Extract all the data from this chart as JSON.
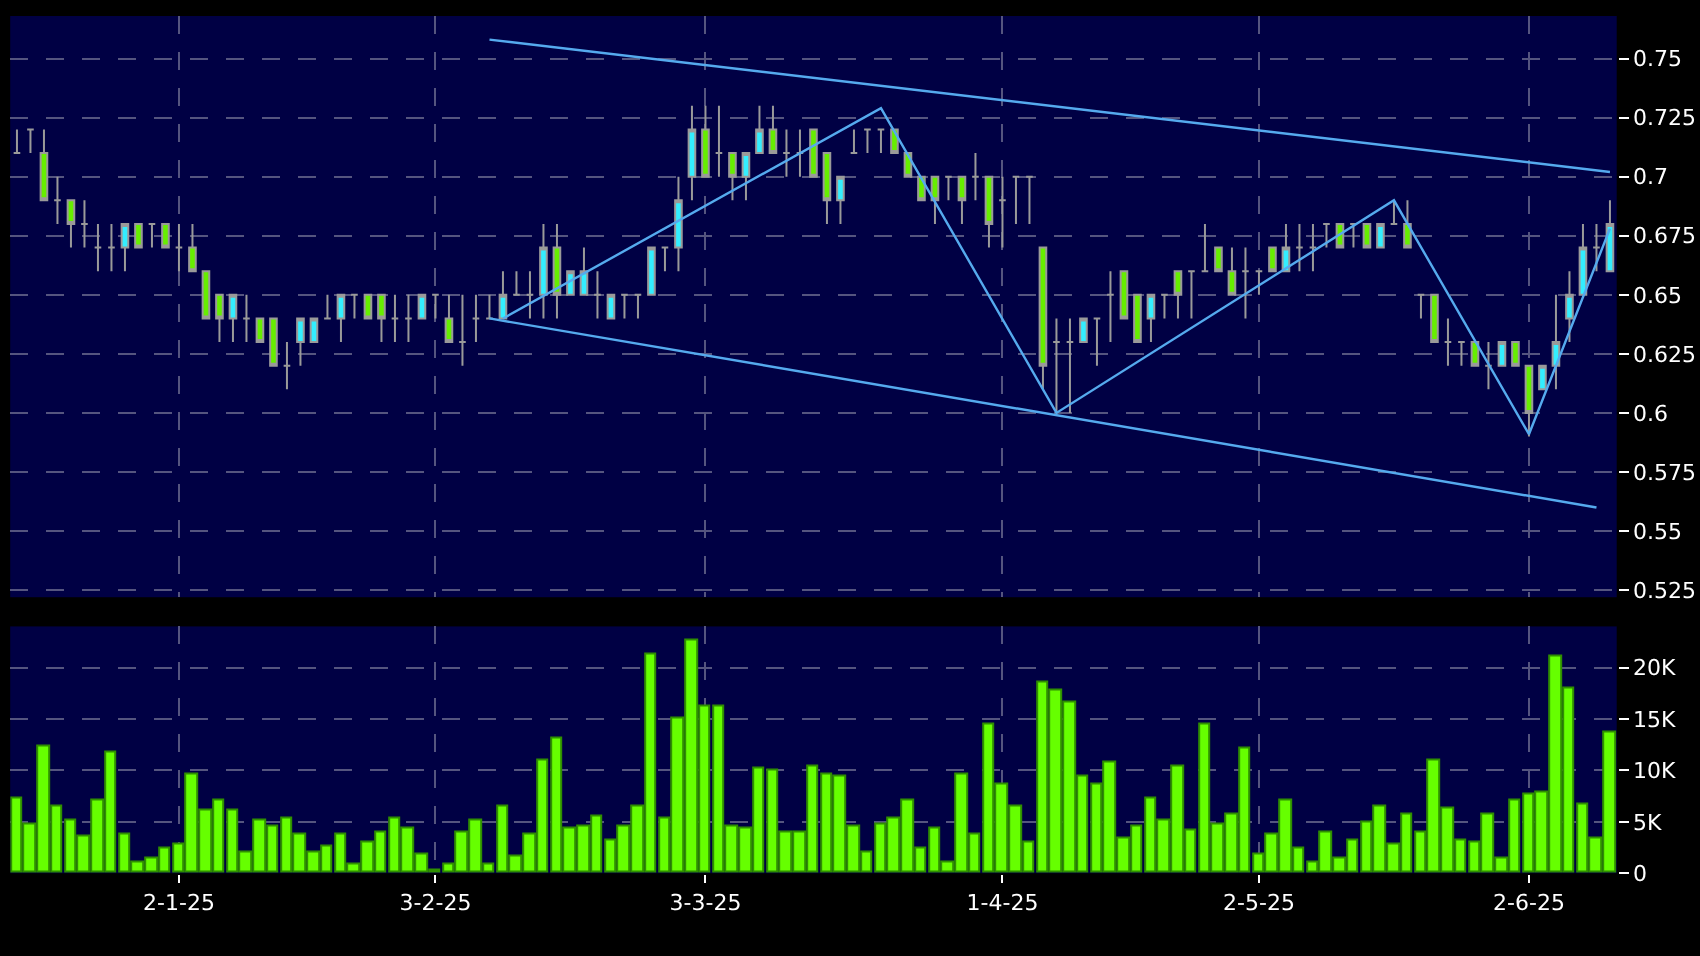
{
  "chart_data": [
    {
      "type": "candlestick",
      "tick_labels": "y",
      "grid": true,
      "categories": [
        null,
        null,
        null,
        null,
        null,
        null,
        null,
        null,
        null,
        null,
        null,
        null,
        null,
        null,
        null,
        null,
        null,
        null,
        null,
        null,
        null,
        null,
        null,
        null,
        null,
        null,
        null,
        null,
        null,
        null,
        null,
        null,
        null,
        null,
        null,
        null,
        null,
        null,
        null,
        null,
        null,
        null,
        null,
        null,
        null,
        null,
        null,
        null,
        null,
        null,
        null,
        null,
        null,
        null,
        null,
        null,
        null,
        null,
        null,
        null,
        null,
        null,
        null,
        null,
        null,
        null,
        null,
        null,
        null,
        null,
        null,
        null,
        null,
        null,
        null,
        null,
        null,
        null,
        null,
        null,
        null,
        null,
        null,
        null,
        null,
        null,
        null,
        null,
        null,
        null,
        null,
        null,
        null,
        null,
        null,
        null,
        null,
        null,
        null,
        null,
        null,
        null,
        null,
        null,
        null,
        null,
        null,
        null,
        null,
        null,
        null,
        null,
        null,
        null,
        null,
        null,
        null,
        null,
        null
      ],
      "ylim": [
        0.522,
        0.768
      ],
      "yticks": [
        0.525,
        0.55,
        0.575,
        0.6,
        0.625,
        0.65,
        0.675,
        0.7,
        0.725,
        0.75
      ],
      "ohlc": [
        [
          0.71,
          0.72,
          0.71,
          0.71
        ],
        [
          0.72,
          0.72,
          0.71,
          0.72
        ],
        [
          0.71,
          0.72,
          0.69,
          0.69
        ],
        [
          0.69,
          0.7,
          0.68,
          0.69
        ],
        [
          0.69,
          0.69,
          0.67,
          0.68
        ],
        [
          0.68,
          0.69,
          0.67,
          0.68
        ],
        [
          0.67,
          0.68,
          0.66,
          0.67
        ],
        [
          0.67,
          0.68,
          0.66,
          0.67
        ],
        [
          0.67,
          0.68,
          0.66,
          0.68
        ],
        [
          0.68,
          0.68,
          0.67,
          0.67
        ],
        [
          0.68,
          0.68,
          0.67,
          0.68
        ],
        [
          0.68,
          0.68,
          0.67,
          0.67
        ],
        [
          0.67,
          0.68,
          0.66,
          0.67
        ],
        [
          0.67,
          0.68,
          0.66,
          0.66
        ],
        [
          0.66,
          0.66,
          0.64,
          0.64
        ],
        [
          0.65,
          0.65,
          0.63,
          0.64
        ],
        [
          0.64,
          0.65,
          0.63,
          0.65
        ],
        [
          0.64,
          0.65,
          0.63,
          0.64
        ],
        [
          0.64,
          0.64,
          0.63,
          0.63
        ],
        [
          0.64,
          0.64,
          0.62,
          0.62
        ],
        [
          0.62,
          0.63,
          0.61,
          0.62
        ],
        [
          0.63,
          0.64,
          0.62,
          0.64
        ],
        [
          0.63,
          0.64,
          0.63,
          0.64
        ],
        [
          0.64,
          0.65,
          0.64,
          0.64
        ],
        [
          0.64,
          0.65,
          0.63,
          0.65
        ],
        [
          0.65,
          0.65,
          0.64,
          0.65
        ],
        [
          0.65,
          0.65,
          0.64,
          0.64
        ],
        [
          0.65,
          0.65,
          0.63,
          0.64
        ],
        [
          0.64,
          0.65,
          0.63,
          0.64
        ],
        [
          0.64,
          0.65,
          0.63,
          0.64
        ],
        [
          0.64,
          0.65,
          0.64,
          0.65
        ],
        [
          0.65,
          0.65,
          0.64,
          0.65
        ],
        [
          0.64,
          0.65,
          0.63,
          0.63
        ],
        [
          0.63,
          0.65,
          0.62,
          0.63
        ],
        [
          0.64,
          0.65,
          0.63,
          0.64
        ],
        [
          0.64,
          0.65,
          0.64,
          0.64
        ],
        [
          0.64,
          0.66,
          0.64,
          0.65
        ],
        [
          0.65,
          0.66,
          0.65,
          0.65
        ],
        [
          0.65,
          0.66,
          0.64,
          0.65
        ],
        [
          0.65,
          0.68,
          0.64,
          0.67
        ],
        [
          0.67,
          0.68,
          0.64,
          0.65
        ],
        [
          0.65,
          0.66,
          0.65,
          0.66
        ],
        [
          0.65,
          0.67,
          0.65,
          0.66
        ],
        [
          0.65,
          0.66,
          0.64,
          0.65
        ],
        [
          0.64,
          0.65,
          0.64,
          0.65
        ],
        [
          0.65,
          0.65,
          0.64,
          0.65
        ],
        [
          0.65,
          0.65,
          0.64,
          0.65
        ],
        [
          0.65,
          0.67,
          0.65,
          0.67
        ],
        [
          0.67,
          0.67,
          0.66,
          0.67
        ],
        [
          0.67,
          0.7,
          0.66,
          0.69
        ],
        [
          0.7,
          0.73,
          0.69,
          0.72
        ],
        [
          0.72,
          0.73,
          0.7,
          0.7
        ],
        [
          0.71,
          0.73,
          0.7,
          0.71
        ],
        [
          0.71,
          0.71,
          0.69,
          0.7
        ],
        [
          0.7,
          0.71,
          0.69,
          0.71
        ],
        [
          0.71,
          0.73,
          0.71,
          0.72
        ],
        [
          0.72,
          0.73,
          0.71,
          0.71
        ],
        [
          0.71,
          0.72,
          0.7,
          0.71
        ],
        [
          0.71,
          0.72,
          0.7,
          0.71
        ],
        [
          0.72,
          0.72,
          0.7,
          0.7
        ],
        [
          0.71,
          0.71,
          0.68,
          0.69
        ],
        [
          0.69,
          0.7,
          0.68,
          0.7
        ],
        [
          0.71,
          0.72,
          0.71,
          0.71
        ],
        [
          0.72,
          0.72,
          0.71,
          0.72
        ],
        [
          0.72,
          0.72,
          0.71,
          0.72
        ],
        [
          0.72,
          0.72,
          0.71,
          0.71
        ],
        [
          0.71,
          0.71,
          0.7,
          0.7
        ],
        [
          0.7,
          0.7,
          0.69,
          0.69
        ],
        [
          0.7,
          0.7,
          0.68,
          0.69
        ],
        [
          0.7,
          0.7,
          0.69,
          0.7
        ],
        [
          0.7,
          0.7,
          0.68,
          0.69
        ],
        [
          0.7,
          0.71,
          0.69,
          0.7
        ],
        [
          0.7,
          0.7,
          0.67,
          0.68
        ],
        [
          0.69,
          0.7,
          0.67,
          0.69
        ],
        [
          0.7,
          0.7,
          0.68,
          0.7
        ],
        [
          0.7,
          0.7,
          0.68,
          0.7
        ],
        [
          0.67,
          0.67,
          0.61,
          0.62
        ],
        [
          0.63,
          0.64,
          0.6,
          0.63
        ],
        [
          0.63,
          0.64,
          0.6,
          0.63
        ],
        [
          0.63,
          0.64,
          0.63,
          0.64
        ],
        [
          0.64,
          0.64,
          0.62,
          0.64
        ],
        [
          0.65,
          0.66,
          0.63,
          0.65
        ],
        [
          0.66,
          0.66,
          0.64,
          0.64
        ],
        [
          0.65,
          0.65,
          0.63,
          0.63
        ],
        [
          0.64,
          0.65,
          0.63,
          0.65
        ],
        [
          0.65,
          0.65,
          0.64,
          0.65
        ],
        [
          0.66,
          0.66,
          0.64,
          0.65
        ],
        [
          0.66,
          0.66,
          0.64,
          0.66
        ],
        [
          0.66,
          0.68,
          0.66,
          0.66
        ],
        [
          0.67,
          0.67,
          0.66,
          0.66
        ],
        [
          0.66,
          0.67,
          0.65,
          0.65
        ],
        [
          0.66,
          0.67,
          0.64,
          0.66
        ],
        [
          0.66,
          0.66,
          0.65,
          0.66
        ],
        [
          0.67,
          0.67,
          0.66,
          0.66
        ],
        [
          0.66,
          0.68,
          0.66,
          0.67
        ],
        [
          0.67,
          0.68,
          0.66,
          0.67
        ],
        [
          0.67,
          0.68,
          0.66,
          0.67
        ],
        [
          0.68,
          0.68,
          0.67,
          0.68
        ],
        [
          0.68,
          0.68,
          0.67,
          0.67
        ],
        [
          0.68,
          0.68,
          0.67,
          0.68
        ],
        [
          0.68,
          0.68,
          0.67,
          0.67
        ],
        [
          0.67,
          0.68,
          0.67,
          0.68
        ],
        [
          0.68,
          0.69,
          0.68,
          0.68
        ],
        [
          0.68,
          0.69,
          0.67,
          0.67
        ],
        [
          0.65,
          0.65,
          0.64,
          0.65
        ],
        [
          0.65,
          0.65,
          0.63,
          0.63
        ],
        [
          0.63,
          0.64,
          0.62,
          0.63
        ],
        [
          0.63,
          0.63,
          0.62,
          0.63
        ],
        [
          0.63,
          0.63,
          0.62,
          0.62
        ],
        [
          0.62,
          0.63,
          0.61,
          0.62
        ],
        [
          0.62,
          0.63,
          0.62,
          0.63
        ],
        [
          0.63,
          0.63,
          0.62,
          0.62
        ],
        [
          0.62,
          0.62,
          0.59,
          0.6
        ],
        [
          0.61,
          0.62,
          0.61,
          0.62
        ],
        [
          0.62,
          0.65,
          0.61,
          0.63
        ],
        [
          0.64,
          0.66,
          0.63,
          0.65
        ],
        [
          0.65,
          0.68,
          0.65,
          0.67
        ],
        [
          0.67,
          0.68,
          0.66,
          0.67
        ],
        [
          0.66,
          0.69,
          0.66,
          0.68
        ]
      ],
      "colors": [
        "#a0a0a0",
        "#a0a0a0",
        "#66ee00",
        "#a0a0a0",
        "#66ee00",
        "#a0a0a0",
        "#a0a0a0",
        "#a0a0a0",
        "#33eeff",
        "#66ee00",
        "#a0a0a0",
        "#66ee00",
        "#a0a0a0",
        "#66ee00",
        "#66ee00",
        "#66ee00",
        "#33eeff",
        "#a0a0a0",
        "#66ee00",
        "#66ee00",
        "#a0a0a0",
        "#33eeff",
        "#33eeff",
        "#a0a0a0",
        "#33eeff",
        "#a0a0a0",
        "#66ee00",
        "#66ee00",
        "#a0a0a0",
        "#a0a0a0",
        "#33eeff",
        "#a0a0a0",
        "#66ee00",
        "#a0a0a0",
        "#a0a0a0",
        "#a0a0a0",
        "#33eeff",
        "#a0a0a0",
        "#a0a0a0",
        "#33eeff",
        "#66ee00",
        "#33eeff",
        "#33eeff",
        "#a0a0a0",
        "#33eeff",
        "#a0a0a0",
        "#a0a0a0",
        "#33eeff",
        "#a0a0a0",
        "#33eeff",
        "#33eeff",
        "#66ee00",
        "#a0a0a0",
        "#66ee00",
        "#33eeff",
        "#33eeff",
        "#66ee00",
        "#a0a0a0",
        "#a0a0a0",
        "#66ee00",
        "#66ee00",
        "#33eeff",
        "#a0a0a0",
        "#a0a0a0",
        "#a0a0a0",
        "#66ee00",
        "#66ee00",
        "#66ee00",
        "#66ee00",
        "#a0a0a0",
        "#66ee00",
        "#a0a0a0",
        "#66ee00",
        "#a0a0a0",
        "#a0a0a0",
        "#a0a0a0",
        "#66ee00",
        "#a0a0a0",
        "#a0a0a0",
        "#33eeff",
        "#a0a0a0",
        "#a0a0a0",
        "#66ee00",
        "#66ee00",
        "#33eeff",
        "#a0a0a0",
        "#66ee00",
        "#a0a0a0",
        "#a0a0a0",
        "#66ee00",
        "#66ee00",
        "#a0a0a0",
        "#a0a0a0",
        "#66ee00",
        "#33eeff",
        "#a0a0a0",
        "#a0a0a0",
        "#a0a0a0",
        "#66ee00",
        "#a0a0a0",
        "#66ee00",
        "#33eeff",
        "#a0a0a0",
        "#66ee00",
        "#a0a0a0",
        "#66ee00",
        "#a0a0a0",
        "#a0a0a0",
        "#66ee00",
        "#a0a0a0",
        "#33eeff",
        "#66ee00",
        "#66ee00",
        "#33eeff",
        "#33eeff",
        "#33eeff",
        "#33eeff",
        "#a0a0a0",
        "#33eeff"
      ],
      "series": [
        {
          "type": "line",
          "color": "#55aaee",
          "values": [
            null,
            null,
            null,
            null,
            null,
            null,
            null,
            null,
            null,
            null,
            null,
            null,
            null,
            null,
            null,
            null,
            null,
            null,
            null,
            null,
            null,
            null,
            null,
            null,
            null,
            null,
            null,
            null,
            null,
            null,
            null,
            null,
            null,
            null,
            null,
            0.758,
            null,
            null,
            null,
            null,
            null,
            null,
            null,
            null,
            null,
            null,
            null,
            null,
            null,
            null,
            null,
            null,
            null,
            null,
            null,
            null,
            null,
            null,
            null,
            null,
            null,
            null,
            null,
            null,
            null,
            null,
            null,
            null,
            null,
            null,
            null,
            null,
            null,
            null,
            null,
            null,
            null,
            null,
            null,
            null,
            null,
            null,
            null,
            null,
            null,
            null,
            null,
            null,
            null,
            null,
            null,
            null,
            null,
            null,
            null,
            null,
            null,
            null,
            null,
            null,
            null,
            null,
            null,
            null,
            null,
            null,
            null,
            null,
            null,
            null,
            null,
            null,
            null,
            null,
            null,
            null,
            null,
            null,
            0.702
          ]
        },
        {
          "type": "line",
          "color": "#55aaee",
          "values": [
            null,
            null,
            null,
            null,
            null,
            null,
            null,
            null,
            null,
            null,
            null,
            null,
            null,
            null,
            null,
            null,
            null,
            null,
            null,
            null,
            null,
            null,
            null,
            null,
            null,
            null,
            null,
            null,
            null,
            null,
            null,
            null,
            null,
            null,
            null,
            0.64,
            null,
            null,
            null,
            null,
            null,
            null,
            null,
            null,
            null,
            null,
            null,
            null,
            null,
            null,
            null,
            null,
            null,
            null,
            null,
            null,
            null,
            null,
            null,
            null,
            null,
            null,
            null,
            null,
            null,
            null,
            null,
            null,
            null,
            null,
            null,
            null,
            null,
            null,
            null,
            null,
            null,
            null,
            null,
            null,
            null,
            null,
            null,
            null,
            null,
            null,
            null,
            null,
            null,
            null,
            null,
            null,
            null,
            null,
            null,
            null,
            null,
            null,
            null,
            null,
            null,
            null,
            null,
            null,
            null,
            null,
            null,
            null,
            null,
            null,
            null,
            null,
            null,
            null,
            null,
            null,
            null,
            0.56,
            null
          ]
        },
        {
          "type": "line",
          "color": "#55aaee",
          "values": [
            null,
            null,
            null,
            null,
            null,
            null,
            null,
            null,
            null,
            null,
            null,
            null,
            null,
            null,
            null,
            null,
            null,
            null,
            null,
            null,
            null,
            null,
            null,
            null,
            null,
            null,
            null,
            null,
            null,
            null,
            null,
            null,
            null,
            null,
            null,
            null,
            0.64,
            null,
            null,
            null,
            null,
            null,
            null,
            null,
            null,
            null,
            null,
            null,
            null,
            null,
            null,
            null,
            null,
            null,
            null,
            null,
            null,
            null,
            null,
            null,
            null,
            null,
            null,
            null,
            0.729,
            null,
            null,
            null,
            null,
            null,
            null,
            null,
            null,
            null,
            null,
            null,
            null,
            0.6,
            null,
            null,
            null,
            null,
            null,
            null,
            null,
            null,
            null,
            null,
            null,
            null,
            null,
            null,
            null,
            null,
            null,
            null,
            null,
            null,
            null,
            null,
            null,
            null,
            0.69,
            null,
            null,
            null,
            null,
            null,
            null,
            null,
            null,
            null,
            0.591,
            null,
            null,
            null,
            null,
            null,
            0.678
          ]
        }
      ]
    },
    {
      "type": "bar",
      "grid": true,
      "color": "#66ff00",
      "categories": [
        null,
        null,
        null,
        null,
        null,
        null,
        null,
        null,
        null,
        null,
        null,
        null,
        "2-1-25",
        null,
        null,
        null,
        null,
        null,
        null,
        null,
        null,
        null,
        null,
        null,
        null,
        null,
        null,
        null,
        null,
        null,
        null,
        "3-2-25",
        null,
        null,
        null,
        null,
        null,
        null,
        null,
        null,
        null,
        null,
        null,
        null,
        null,
        null,
        null,
        null,
        null,
        null,
        null,
        "3-3-25",
        null,
        null,
        null,
        null,
        null,
        null,
        null,
        null,
        null,
        null,
        null,
        null,
        null,
        null,
        null,
        null,
        null,
        null,
        null,
        null,
        null,
        "1-4-25",
        null,
        null,
        null,
        null,
        null,
        null,
        null,
        null,
        null,
        null,
        null,
        null,
        null,
        null,
        null,
        null,
        null,
        null,
        "2-5-25",
        null,
        null,
        null,
        null,
        null,
        null,
        null,
        null,
        null,
        null,
        null,
        null,
        null,
        null,
        null,
        null,
        null,
        null,
        null,
        "2-6-25",
        null,
        null,
        null,
        null,
        null,
        null
      ],
      "ylim": [
        0,
        24000
      ],
      "yticks": [
        0,
        {
          "value": 5000,
          "label": "5K"
        },
        {
          "value": 10000,
          "label": "10K"
        },
        {
          "value": 15000,
          "label": "15K"
        },
        {
          "value": 20000,
          "label": "20K"
        }
      ],
      "values": [
        7200,
        4700,
        12400,
        6500,
        5100,
        3600,
        7000,
        11800,
        3700,
        1000,
        1400,
        2400,
        2800,
        9700,
        6200,
        7000,
        6200,
        2100,
        5100,
        4600,
        5300,
        3700,
        2000,
        2700,
        3800,
        900,
        2900,
        4000,
        5400,
        4400,
        1900,
        200,
        900,
        3900,
        5100,
        800,
        6400,
        1700,
        3700,
        11000,
        13100,
        4400,
        4500,
        5600,
        3100,
        4500,
        6400,
        21300,
        5400,
        15100,
        22700,
        16200,
        16300,
        4600,
        4300,
        10200,
        10000,
        3900,
        4000,
        10300,
        9600,
        9400,
        4500,
        2000,
        4700,
        5300,
        7100,
        2400,
        4300,
        1000,
        9700,
        3700,
        14500,
        8700,
        6400,
        2900,
        18500,
        17800,
        16700,
        9500,
        8700,
        10800,
        3300,
        4500,
        7300,
        5200,
        10300,
        4100,
        14400,
        4700,
        5700,
        12200,
        1800,
        3800,
        7000,
        2400,
        1100,
        3900,
        1500,
        3100,
        4900,
        6500,
        2800,
        5700,
        4000,
        10900,
        6300,
        3100,
        2900,
        5800,
        1500,
        7100,
        7700,
        7800,
        21100,
        17900,
        6700,
        3300,
        13700
      ]
    }
  ]
}
